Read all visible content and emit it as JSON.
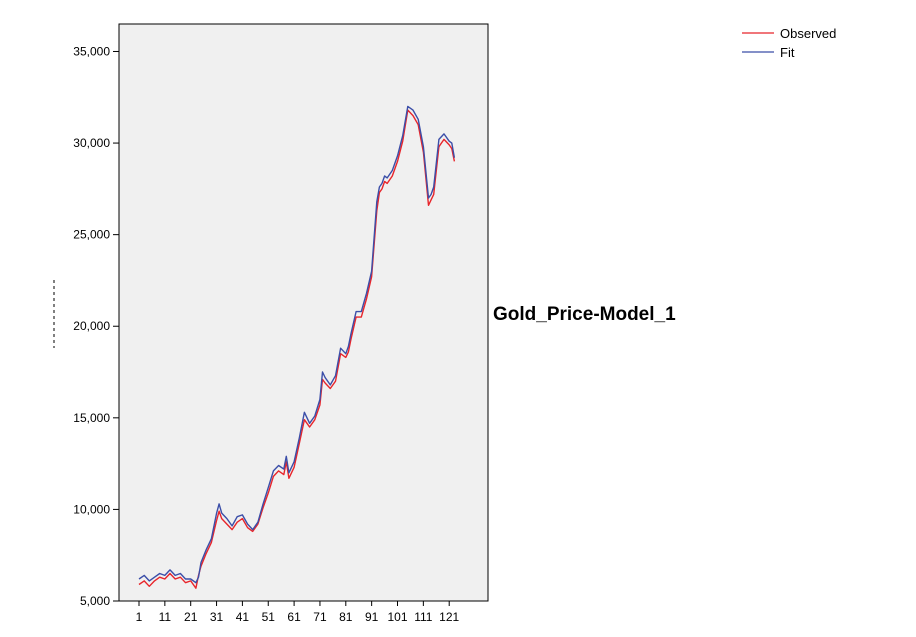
{
  "chart_data": {
    "type": "line",
    "title": "",
    "model_label": "Gold_Price-Model_1",
    "xlabel": "",
    "ylabel": "",
    "xlim": [
      1,
      125
    ],
    "ylim": [
      5000,
      36500
    ],
    "y_ticks": [
      5000,
      10000,
      15000,
      20000,
      25000,
      30000,
      35000
    ],
    "y_tick_labels": [
      "5,000",
      "10,000",
      "15,000",
      "20,000",
      "25,000",
      "30,000",
      "35,000"
    ],
    "x_ticks": [
      1,
      11,
      21,
      31,
      41,
      51,
      61,
      71,
      81,
      91,
      101,
      111,
      121
    ],
    "x_tick_labels": [
      "1",
      "11",
      "21",
      "31",
      "41",
      "51",
      "61",
      "71",
      "81",
      "91",
      "101",
      "111",
      "121"
    ],
    "legend_position": "top-right",
    "plot_background": "#f0f0f0",
    "series": [
      {
        "name": "Observed",
        "color": "#e8252b",
        "x": [
          1,
          3,
          5,
          7,
          9,
          11,
          13,
          15,
          17,
          19,
          21,
          23,
          24,
          25,
          27,
          29,
          31,
          32,
          33,
          35,
          37,
          39,
          41,
          43,
          45,
          47,
          49,
          51,
          53,
          55,
          57,
          58,
          59,
          61,
          63,
          65,
          67,
          69,
          71,
          72,
          73,
          75,
          77,
          79,
          81,
          82,
          83,
          85,
          87,
          89,
          91,
          93,
          94,
          95,
          96,
          97,
          99,
          101,
          103,
          105,
          107,
          109,
          111,
          113,
          114,
          115,
          117,
          119,
          121,
          122,
          123
        ],
        "values": [
          5900,
          6100,
          5800,
          6100,
          6300,
          6200,
          6500,
          6200,
          6300,
          6000,
          6100,
          5700,
          6400,
          6900,
          7600,
          8200,
          9400,
          9900,
          9500,
          9200,
          8900,
          9300,
          9500,
          9000,
          8800,
          9200,
          10100,
          10900,
          11800,
          12100,
          11900,
          12600,
          11700,
          12300,
          13600,
          14900,
          14500,
          14900,
          15700,
          17100,
          16900,
          16600,
          17000,
          18500,
          18300,
          18600,
          19300,
          20500,
          20500,
          21500,
          22700,
          26300,
          27300,
          27500,
          27900,
          27800,
          28200,
          29000,
          30100,
          31800,
          31500,
          31000,
          29500,
          26600,
          26900,
          27200,
          29800,
          30200,
          29900,
          29700,
          29000
        ]
      },
      {
        "name": "Fit",
        "color": "#3b4ea8",
        "x": [
          1,
          3,
          5,
          7,
          9,
          11,
          13,
          15,
          17,
          19,
          21,
          23,
          24,
          25,
          27,
          29,
          31,
          32,
          33,
          35,
          37,
          39,
          41,
          43,
          45,
          47,
          49,
          51,
          53,
          55,
          57,
          58,
          59,
          61,
          63,
          65,
          67,
          69,
          71,
          72,
          73,
          75,
          77,
          79,
          81,
          82,
          83,
          85,
          87,
          89,
          91,
          93,
          94,
          95,
          96,
          97,
          99,
          101,
          103,
          105,
          107,
          109,
          111,
          113,
          114,
          115,
          117,
          119,
          121,
          122,
          123
        ],
        "values": [
          6200,
          6400,
          6100,
          6300,
          6500,
          6400,
          6700,
          6400,
          6500,
          6200,
          6200,
          6000,
          6300,
          7100,
          7800,
          8400,
          9800,
          10300,
          9800,
          9500,
          9100,
          9600,
          9700,
          9200,
          8900,
          9300,
          10300,
          11200,
          12100,
          12400,
          12200,
          12900,
          12000,
          12600,
          13900,
          15300,
          14700,
          15100,
          16000,
          17500,
          17200,
          16800,
          17300,
          18800,
          18500,
          18900,
          19600,
          20800,
          20800,
          21800,
          23000,
          26800,
          27600,
          27800,
          28200,
          28100,
          28500,
          29300,
          30400,
          32000,
          31800,
          31300,
          29800,
          27000,
          27200,
          27600,
          30200,
          30500,
          30100,
          30000,
          29200
        ]
      }
    ]
  }
}
